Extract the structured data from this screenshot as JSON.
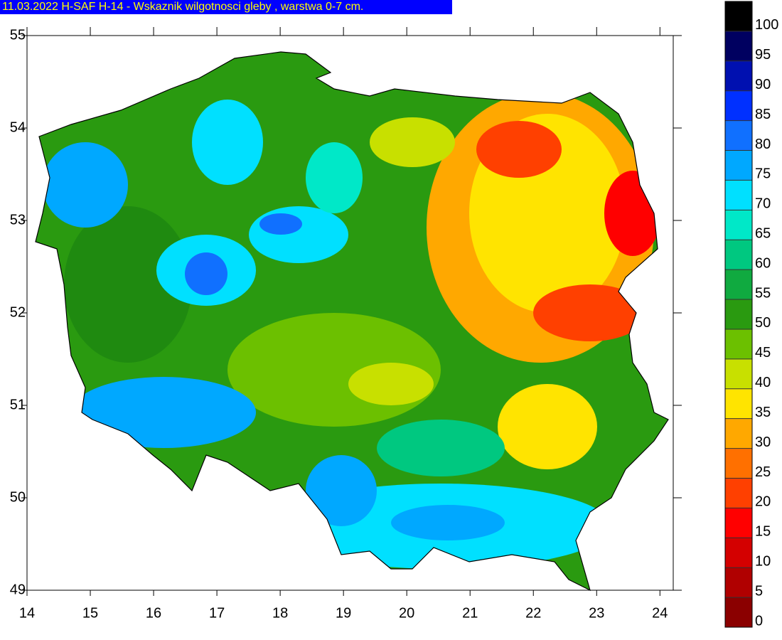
{
  "chart_data": {
    "type": "contour",
    "title": "11.03.2022 H-SAF H-14 - Wskaznik wilgotnosci gleby , warstwa 0-7 cm.",
    "xlim": [
      14,
      24.21
    ],
    "xticks": [
      14,
      15,
      16,
      17,
      18,
      19,
      20,
      21,
      22,
      23,
      24
    ],
    "ylim": [
      49,
      55
    ],
    "yticks": [
      49,
      50,
      51,
      52,
      53,
      54,
      55
    ],
    "colorbar": {
      "lim": [
        0,
        105
      ],
      "ticks": [
        0,
        5,
        10,
        15,
        20,
        25,
        30,
        35,
        40,
        45,
        50,
        55,
        60,
        65,
        70,
        75,
        80,
        85,
        90,
        95,
        100
      ],
      "colors": [
        "#8b0000",
        "#b00000",
        "#d40000",
        "#ff0000",
        "#ff4000",
        "#ff7000",
        "#ffa800",
        "#ffe400",
        "#c8e000",
        "#6cc000",
        "#2a9a10",
        "#10aa40",
        "#00c880",
        "#00e8c8",
        "#00e0ff",
        "#00a8ff",
        "#1070ff",
        "#0030ff",
        "#0010b0",
        "#000060",
        "#000000"
      ]
    }
  }
}
